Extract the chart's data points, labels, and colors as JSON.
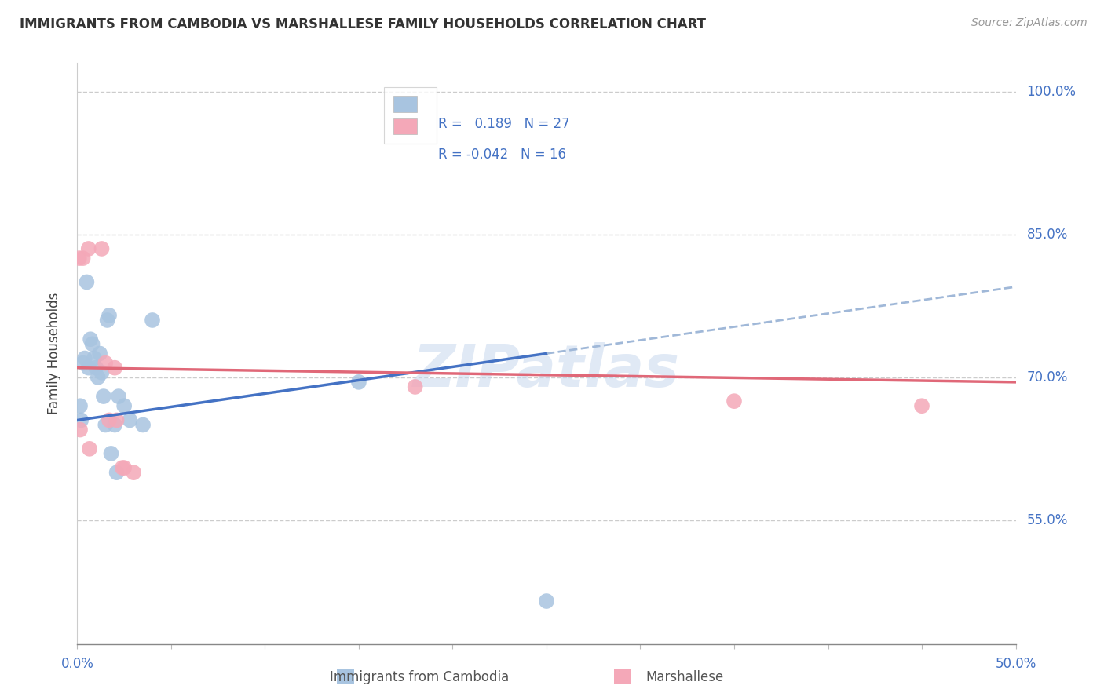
{
  "title": "IMMIGRANTS FROM CAMBODIA VS MARSHALLESE FAMILY HOUSEHOLDS CORRELATION CHART",
  "source": "Source: ZipAtlas.com",
  "ylabel": "Family Households",
  "legend_label1": "Immigrants from Cambodia",
  "legend_label2": "Marshallese",
  "R1": 0.189,
  "N1": 27,
  "R2": -0.042,
  "N2": 16,
  "ytick_labels": [
    "55.0%",
    "70.0%",
    "85.0%",
    "100.0%"
  ],
  "ytick_values": [
    55.0,
    70.0,
    85.0,
    100.0
  ],
  "xlim": [
    0.0,
    50.0
  ],
  "ylim": [
    42.0,
    103.0
  ],
  "color_blue": "#a8c4e0",
  "color_pink": "#f4a8b8",
  "line_blue": "#4472c4",
  "line_pink": "#e06878",
  "line_dash": "#a0b8d8",
  "watermark": "ZIPatlas",
  "cambodia_x": [
    0.15,
    0.2,
    0.3,
    0.4,
    0.5,
    0.6,
    0.7,
    0.8,
    0.9,
    1.0,
    1.1,
    1.2,
    1.3,
    1.4,
    1.5,
    1.6,
    1.7,
    1.8,
    2.0,
    2.1,
    2.2,
    2.5,
    2.8,
    3.5,
    4.0,
    15.0,
    25.0
  ],
  "cambodia_y": [
    67.0,
    65.5,
    71.5,
    72.0,
    80.0,
    71.0,
    74.0,
    73.5,
    72.0,
    71.0,
    70.0,
    72.5,
    70.5,
    68.0,
    65.0,
    76.0,
    76.5,
    62.0,
    65.0,
    60.0,
    68.0,
    67.0,
    65.5,
    65.0,
    76.0,
    69.5,
    46.5
  ],
  "marshallese_x": [
    0.1,
    0.3,
    0.6,
    1.3,
    1.5,
    1.7,
    2.0,
    2.4,
    2.5,
    3.0,
    18.0,
    35.0,
    45.0,
    0.15,
    0.65,
    2.1
  ],
  "marshallese_y": [
    82.5,
    82.5,
    83.5,
    83.5,
    71.5,
    65.5,
    71.0,
    60.5,
    60.5,
    60.0,
    69.0,
    67.5,
    67.0,
    64.5,
    62.5,
    65.5
  ],
  "solid_end_x": 25.0
}
